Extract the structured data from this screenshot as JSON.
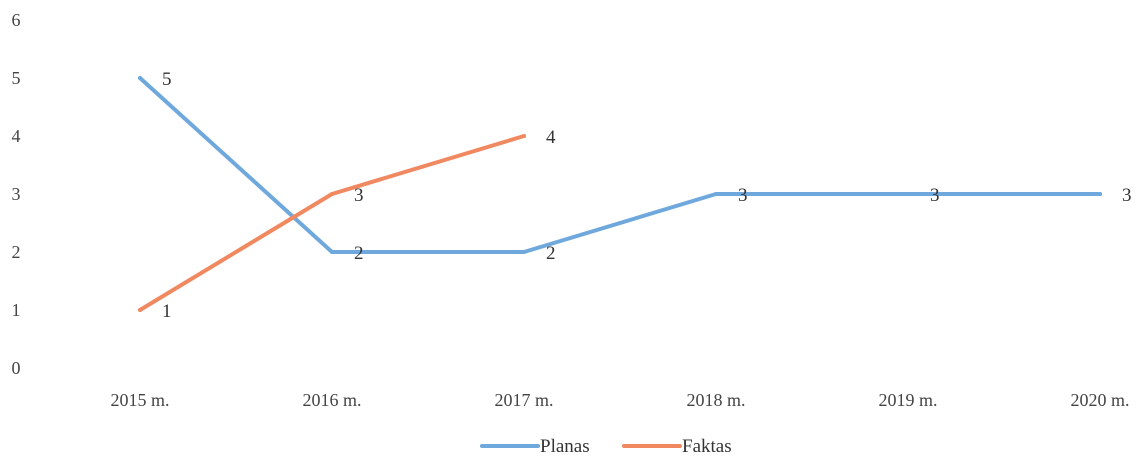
{
  "chart_data": {
    "type": "line",
    "title": "",
    "xlabel": "",
    "ylabel": "",
    "categories": [
      "2015 m.",
      "2016 m.",
      "2017 m.",
      "2018 m.",
      "2019 m.",
      "2020 m."
    ],
    "ylim": [
      0,
      6
    ],
    "y_ticks": [
      "0",
      "1",
      "2",
      "3",
      "4",
      "5",
      "6"
    ],
    "grid": false,
    "legend_position": "bottom",
    "data_labels": true,
    "series": [
      {
        "name": "Planas",
        "color": "#6fa8dc",
        "values": [
          5,
          2,
          2,
          3,
          3,
          3
        ]
      },
      {
        "name": "Faktas",
        "color": "#f08860",
        "values": [
          1,
          3,
          4,
          null,
          null,
          null
        ]
      }
    ]
  }
}
